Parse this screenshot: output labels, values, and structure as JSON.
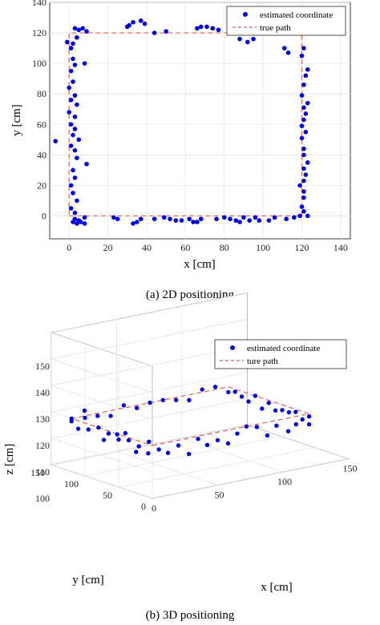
{
  "chart_data": [
    {
      "type": "scatter",
      "xlabel": "x [cm]",
      "ylabel": "y [cm]",
      "xlim": [
        -10,
        145
      ],
      "ylim": [
        -15,
        140
      ],
      "xticks": [
        0,
        20,
        40,
        60,
        80,
        100,
        120,
        140
      ],
      "yticks": [
        0,
        20,
        40,
        60,
        80,
        100,
        120,
        140
      ],
      "grid": true,
      "legend_position": "top-right",
      "caption": "(a)  2D positioning",
      "series": [
        {
          "name": "estimated coordinate",
          "kind": "scatter",
          "color": "#0000e6",
          "points": [
            [
              -1,
              114
            ],
            [
              2,
              113
            ],
            [
              3,
              123
            ],
            [
              5,
              122
            ],
            [
              7,
              123
            ],
            [
              9,
              121
            ],
            [
              4,
              117
            ],
            [
              1,
              110
            ],
            [
              2,
              103
            ],
            [
              3,
              99
            ],
            [
              1,
              95
            ],
            [
              2,
              88
            ],
            [
              0,
              84
            ],
            [
              3,
              79
            ],
            [
              1,
              76
            ],
            [
              4,
              73
            ],
            [
              0,
              68
            ],
            [
              3,
              65
            ],
            [
              1,
              60
            ],
            [
              3,
              57
            ],
            [
              2,
              53
            ],
            [
              5,
              50
            ],
            [
              1,
              46
            ],
            [
              3,
              43
            ],
            [
              4,
              38
            ],
            [
              9,
              34
            ],
            [
              2,
              30
            ],
            [
              3,
              25
            ],
            [
              1,
              20
            ],
            [
              2,
              15
            ],
            [
              4,
              10
            ],
            [
              1,
              5
            ],
            [
              3,
              2
            ],
            [
              -7,
              49
            ],
            [
              8,
              100
            ],
            [
              5,
              -3
            ],
            [
              4,
              -5
            ],
            [
              3,
              -2
            ],
            [
              8,
              -1
            ],
            [
              6,
              -4
            ],
            [
              8,
              -5
            ],
            [
              2,
              -4
            ],
            [
              23,
              -1
            ],
            [
              25,
              -2
            ],
            [
              33,
              -5
            ],
            [
              35,
              -4
            ],
            [
              37,
              -2
            ],
            [
              44,
              -2
            ],
            [
              49,
              -1
            ],
            [
              52,
              -2
            ],
            [
              55,
              -3
            ],
            [
              58,
              -3
            ],
            [
              62,
              -2
            ],
            [
              64,
              -4
            ],
            [
              66,
              -4
            ],
            [
              68,
              -2
            ],
            [
              76,
              -2
            ],
            [
              80,
              -1
            ],
            [
              83,
              -2
            ],
            [
              86,
              -3
            ],
            [
              88,
              -4
            ],
            [
              90,
              -1
            ],
            [
              93,
              -3
            ],
            [
              96,
              -1
            ],
            [
              98,
              -3
            ],
            [
              103,
              -3
            ],
            [
              106,
              -1
            ],
            [
              112,
              -2
            ],
            [
              116,
              -1
            ],
            [
              30,
              124
            ],
            [
              31,
              125
            ],
            [
              33,
              127
            ],
            [
              37,
              128
            ],
            [
              39,
              126
            ],
            [
              44,
              120
            ],
            [
              50,
              121
            ],
            [
              66,
              123
            ],
            [
              68,
              124
            ],
            [
              71,
              124
            ],
            [
              74,
              123
            ],
            [
              77,
              122
            ],
            [
              88,
              116
            ],
            [
              92,
              114
            ],
            [
              95,
              116
            ],
            [
              111,
              110
            ],
            [
              113,
              107
            ],
            [
              119,
              0
            ],
            [
              123,
              0
            ],
            [
              121,
              3
            ],
            [
              120,
              6
            ],
            [
              121,
              12
            ],
            [
              121,
              16
            ],
            [
              119,
              20
            ],
            [
              121,
              23
            ],
            [
              122,
              27
            ],
            [
              121,
              31
            ],
            [
              123,
              35
            ],
            [
              121,
              40
            ],
            [
              121,
              44
            ],
            [
              120,
              51
            ],
            [
              122,
              55
            ],
            [
              120,
              59
            ],
            [
              121,
              63
            ],
            [
              122,
              67
            ],
            [
              121,
              71
            ],
            [
              123,
              74
            ],
            [
              120,
              79
            ],
            [
              121,
              86
            ],
            [
              122,
              92
            ],
            [
              123,
              96
            ],
            [
              120,
              105
            ],
            [
              121,
              110
            ]
          ]
        },
        {
          "name": "true path",
          "kind": "line",
          "color": "#e06060",
          "points": [
            [
              0,
              0
            ],
            [
              120,
              0
            ],
            [
              120,
              120
            ],
            [
              0,
              120
            ],
            [
              0,
              0
            ]
          ]
        }
      ]
    },
    {
      "type": "scatter",
      "projection": "3d",
      "xlabel": "x [cm]",
      "ylabel": "y [cm]",
      "zlabel": "z [cm]",
      "xlim": [
        0,
        150
      ],
      "ylim": [
        0,
        150
      ],
      "zlim": [
        100,
        150
      ],
      "xticks": [
        0,
        50,
        100,
        150
      ],
      "yticks": [
        0,
        50,
        100,
        150
      ],
      "zticks": [
        100,
        110,
        120,
        130,
        140,
        150
      ],
      "xtick_labels": [
        "0",
        "50",
        "100",
        "150"
      ],
      "ytick_labels": [
        "0",
        "50",
        "100",
        "150"
      ],
      "ztick_labels": [
        "100",
        "110",
        "120",
        "130",
        "140",
        "150"
      ],
      "grid": true,
      "legend_position": "top-right",
      "caption": "(b)  3D positioning",
      "series": [
        {
          "name": "estimated coordinate",
          "kind": "scatter",
          "color": "#0000e6",
          "points": [
            [
              0,
              5,
              121
            ],
            [
              0,
              20,
              118
            ],
            [
              0,
              35,
              119
            ],
            [
              0,
              50,
              118
            ],
            [
              0,
              65,
              119
            ],
            [
              0,
              80,
              120
            ],
            [
              0,
              95,
              118
            ],
            [
              0,
              110,
              117
            ],
            [
              0,
              120,
              119
            ],
            [
              5,
              0,
              118
            ],
            [
              2,
              10,
              116
            ],
            [
              1,
              42,
              121
            ],
            [
              0,
              72,
              116
            ],
            [
              3,
              58,
              119
            ],
            [
              0,
              100,
              122
            ],
            [
              2,
              28,
              115
            ],
            [
              20,
              0,
              118
            ],
            [
              35,
              0,
              119
            ],
            [
              50,
              0,
              117
            ],
            [
              65,
              0,
              118
            ],
            [
              80,
              0,
              119
            ],
            [
              95,
              0,
              118
            ],
            [
              110,
              0,
              117
            ],
            [
              120,
              0,
              116
            ],
            [
              28,
              0,
              114
            ],
            [
              58,
              0,
              115
            ],
            [
              88,
              0,
              115
            ],
            [
              72,
              0,
              120
            ],
            [
              12,
              0,
              116
            ],
            [
              42,
              0,
              116
            ],
            [
              104,
              0,
              115
            ],
            [
              0,
              120,
              120
            ],
            [
              20,
              120,
              119
            ],
            [
              40,
              120,
              121
            ],
            [
              60,
              120,
              120
            ],
            [
              80,
              120,
              119
            ],
            [
              100,
              120,
              121
            ],
            [
              120,
              120,
              118
            ],
            [
              10,
              120,
              122
            ],
            [
              30,
              120,
              118
            ],
            [
              50,
              120,
              119
            ],
            [
              70,
              120,
              120
            ],
            [
              90,
              120,
              118
            ],
            [
              110,
              120,
              121
            ],
            [
              120,
              0,
              119
            ],
            [
              120,
              20,
              119
            ],
            [
              120,
              40,
              118
            ],
            [
              120,
              60,
              119
            ],
            [
              120,
              80,
              120
            ],
            [
              120,
              100,
              118
            ],
            [
              120,
              110,
              119
            ],
            [
              120,
              10,
              117
            ],
            [
              120,
              30,
              118
            ],
            [
              120,
              50,
              117
            ],
            [
              120,
              70,
              116
            ],
            [
              120,
              90,
              117
            ]
          ]
        },
        {
          "name": "ture path",
          "kind": "line",
          "color": "#e06060",
          "points": [
            [
              0,
              0,
              120
            ],
            [
              120,
              0,
              120
            ],
            [
              120,
              120,
              120
            ],
            [
              0,
              120,
              120
            ],
            [
              0,
              0,
              120
            ]
          ]
        }
      ]
    }
  ]
}
